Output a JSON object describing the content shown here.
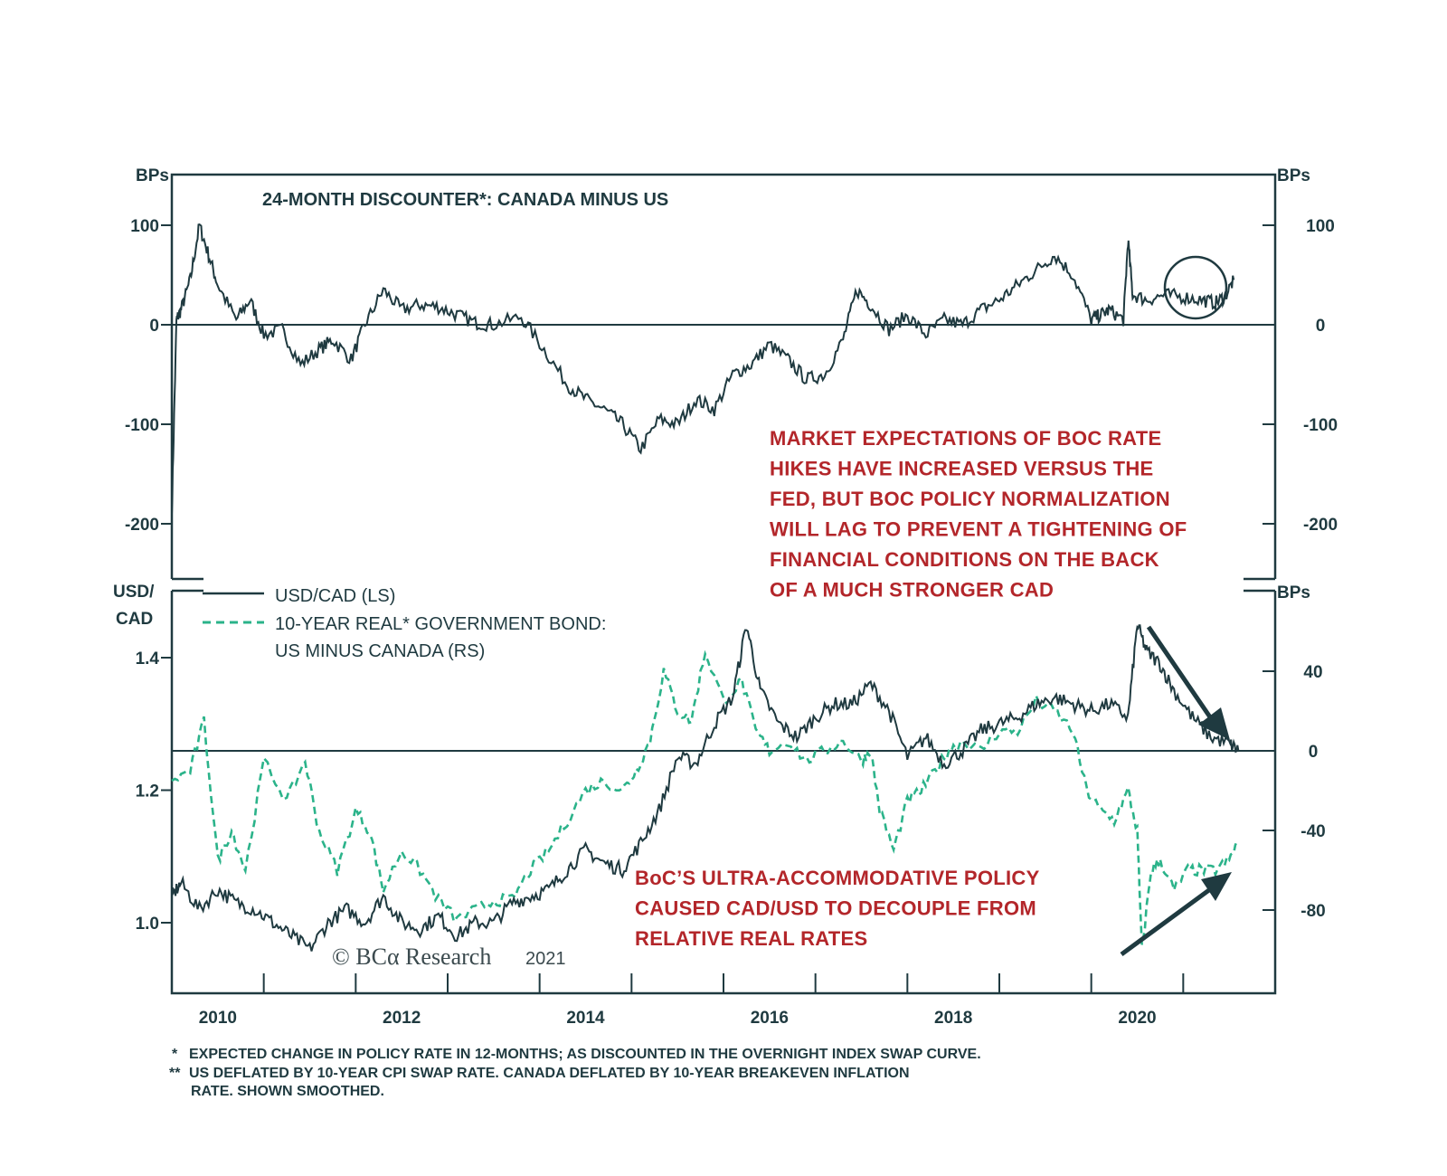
{
  "colors": {
    "frame": "#1f3a40",
    "usdcad_line": "#1f3a40",
    "real_rate_line": "#2bb38a",
    "annotation_red": "#b3262a"
  },
  "chart_data": [
    {
      "type": "line",
      "title": "24-MONTH DISCOUNTER*: CANADA MINUS US",
      "ylabel_left": "BPs",
      "ylabel_right": "BPs",
      "ylim": [
        -250,
        150
      ],
      "yticks": [
        "100",
        "0",
        "-100",
        "-200"
      ],
      "grid": false,
      "series": [
        {
          "name": "24-MONTH DISCOUNTER*: CANADA MINUS US",
          "color": "#1f3a40",
          "x": [
            2009.5,
            2009.55,
            2009.6,
            2009.7,
            2009.8,
            2009.9,
            2010.0,
            2010.2,
            2010.35,
            2010.5,
            2010.7,
            2010.9,
            2011.1,
            2011.25,
            2011.45,
            2011.6,
            2011.8,
            2012.0,
            2012.2,
            2012.4,
            2012.6,
            2012.8,
            2013.0,
            2013.3,
            2013.55,
            2013.8,
            2014.0,
            2014.2,
            2014.4,
            2014.6,
            2014.8,
            2015.0,
            2015.2,
            2015.4,
            2015.6,
            2015.8,
            2016.0,
            2016.2,
            2016.4,
            2016.6,
            2016.8,
            2016.95,
            2017.1,
            2017.3,
            2017.5,
            2017.7,
            2017.9,
            2018.1,
            2018.3,
            2018.5,
            2018.7,
            2018.9,
            2019.1,
            2019.3,
            2019.5,
            2019.6,
            2019.7,
            2019.85,
            2019.9,
            2019.95,
            2020.1,
            2020.3,
            2020.5,
            2020.7,
            2020.85,
            2020.95,
            2021.05
          ],
          "y": [
            -190,
            5,
            15,
            45,
            100,
            70,
            40,
            5,
            25,
            -10,
            -5,
            -40,
            -25,
            -15,
            -35,
            0,
            35,
            15,
            20,
            18,
            10,
            2,
            0,
            8,
            -25,
            -60,
            -75,
            -85,
            -100,
            -125,
            -95,
            -100,
            -75,
            -85,
            -50,
            -40,
            -20,
            -35,
            -55,
            -50,
            -15,
            35,
            20,
            -5,
            10,
            -10,
            5,
            0,
            15,
            25,
            40,
            55,
            70,
            50,
            5,
            10,
            15,
            5,
            85,
            30,
            25,
            30,
            28,
            25,
            22,
            28,
            45
          ]
        }
      ]
    },
    {
      "type": "line",
      "ylabel_left": "USD/ CAD",
      "ylabel_right": "BPs",
      "ylim_left": [
        0.9,
        1.5
      ],
      "ylim_right": [
        -120,
        80
      ],
      "yticks_left": [
        "1.4",
        "1.2",
        "1.0"
      ],
      "yticks_right": [
        "40",
        "0",
        "-40",
        "-80"
      ],
      "xticks": [
        "2010",
        "2012",
        "2014",
        "2016",
        "2018",
        "2020"
      ],
      "xlim": [
        2009.5,
        2021.5
      ],
      "grid": false,
      "legend": "top-left",
      "series": [
        {
          "name": "USD/CAD (LS)",
          "axis": "left",
          "style": "solid",
          "color": "#1f3a40",
          "x": [
            2009.5,
            2009.6,
            2009.8,
            2010.0,
            2010.2,
            2010.4,
            2010.6,
            2010.8,
            2011.0,
            2011.2,
            2011.4,
            2011.6,
            2011.8,
            2012.0,
            2012.2,
            2012.4,
            2012.6,
            2012.8,
            2013.0,
            2013.2,
            2013.4,
            2013.6,
            2013.8,
            2014.0,
            2014.2,
            2014.4,
            2014.6,
            2014.8,
            2015.0,
            2015.2,
            2015.4,
            2015.6,
            2015.75,
            2015.9,
            2016.1,
            2016.3,
            2016.5,
            2016.7,
            2016.9,
            2017.1,
            2017.3,
            2017.5,
            2017.7,
            2017.9,
            2018.1,
            2018.3,
            2018.5,
            2018.7,
            2018.9,
            2019.1,
            2019.3,
            2019.5,
            2019.7,
            2019.9,
            2020.0,
            2020.1,
            2020.25,
            2020.4,
            2020.6,
            2020.8,
            2021.0,
            2021.1
          ],
          "y": [
            1.04,
            1.06,
            1.02,
            1.05,
            1.03,
            1.02,
            1.0,
            0.98,
            0.96,
            1.0,
            1.02,
            1.0,
            1.04,
            1.0,
            0.99,
            1.01,
            0.98,
            1.0,
            1.0,
            1.03,
            1.04,
            1.05,
            1.08,
            1.11,
            1.09,
            1.08,
            1.12,
            1.17,
            1.25,
            1.24,
            1.3,
            1.34,
            1.45,
            1.35,
            1.3,
            1.28,
            1.31,
            1.33,
            1.33,
            1.36,
            1.32,
            1.25,
            1.28,
            1.24,
            1.26,
            1.29,
            1.3,
            1.31,
            1.33,
            1.34,
            1.33,
            1.32,
            1.33,
            1.31,
            1.45,
            1.41,
            1.39,
            1.35,
            1.31,
            1.28,
            1.27,
            1.26
          ]
        },
        {
          "name": "10-YEAR REAL* GOVERNMENT BOND: US MINUS CANADA (RS)",
          "axis": "right",
          "style": "dashed",
          "color": "#2bb38a",
          "x": [
            2009.5,
            2009.7,
            2009.85,
            2010.0,
            2010.15,
            2010.3,
            2010.5,
            2010.75,
            2010.95,
            2011.1,
            2011.3,
            2011.5,
            2011.65,
            2011.8,
            2012.0,
            2012.2,
            2012.4,
            2012.6,
            2012.8,
            2013.0,
            2013.2,
            2013.4,
            2013.6,
            2013.8,
            2014.0,
            2014.2,
            2014.4,
            2014.55,
            2014.7,
            2014.85,
            2015.0,
            2015.15,
            2015.3,
            2015.5,
            2015.7,
            2015.85,
            2016.0,
            2016.2,
            2016.4,
            2016.6,
            2016.8,
            2017.0,
            2017.1,
            2017.2,
            2017.35,
            2017.5,
            2017.65,
            2017.8,
            2017.95,
            2018.1,
            2018.3,
            2018.5,
            2018.7,
            2018.9,
            2019.1,
            2019.3,
            2019.45,
            2019.6,
            2019.75,
            2019.9,
            2020.0,
            2020.05,
            2020.15,
            2020.25,
            2020.4,
            2020.55,
            2020.7,
            2020.85,
            2021.0,
            2021.1
          ],
          "y": [
            -15,
            -10,
            15,
            -55,
            -40,
            -60,
            -5,
            -25,
            -5,
            -40,
            -60,
            -30,
            -40,
            -70,
            -50,
            -60,
            -75,
            -85,
            -80,
            -75,
            -75,
            -60,
            -50,
            -35,
            -20,
            -15,
            -20,
            -10,
            5,
            40,
            20,
            15,
            50,
            25,
            35,
            10,
            0,
            5,
            -5,
            0,
            5,
            -5,
            0,
            -30,
            -50,
            -25,
            -20,
            -10,
            0,
            5,
            0,
            10,
            10,
            25,
            20,
            10,
            -20,
            -30,
            -35,
            -20,
            -40,
            -100,
            -60,
            -55,
            -70,
            -60,
            -60,
            -60,
            -55,
            -45
          ]
        }
      ]
    }
  ],
  "annotations": {
    "boc_note": [
      "MARKET EXPECTATIONS OF BOC RATE",
      "HIKES HAVE INCREASED VERSUS THE",
      "FED, BUT BOC POLICY NORMALIZATION",
      "WILL LAG TO PREVENT A TIGHTENING OF",
      "FINANCIAL CONDITIONS ON THE BACK",
      "OF A MUCH STRONGER CAD"
    ],
    "decouple_note": [
      "BoC’S ULTRA-ACCOMMODATIVE POLICY",
      "CAUSED CAD/USD TO DECOUPLE FROM",
      "RELATIVE REAL RATES"
    ],
    "copyright": "© BCα Research",
    "copyright_year": "2021"
  },
  "legend": {
    "usdcad": "USD/CAD (LS)",
    "real_line1": "10-YEAR REAL* GOVERNMENT BOND:",
    "real_line2": "US MINUS CANADA (RS)"
  },
  "footnotes": {
    "note1_mark": "*",
    "note1": "EXPECTED CHANGE IN POLICY RATE IN 12-MONTHS; AS DISCOUNTED IN THE OVERNIGHT INDEX SWAP CURVE.",
    "note2_mark": "**",
    "note2_line1": "US DEFLATED BY 10-YEAR CPI SWAP RATE. CANADA DEFLATED BY 10-YEAR BREAKEVEN INFLATION",
    "note2_line2": "RATE. SHOWN SMOOTHED."
  }
}
